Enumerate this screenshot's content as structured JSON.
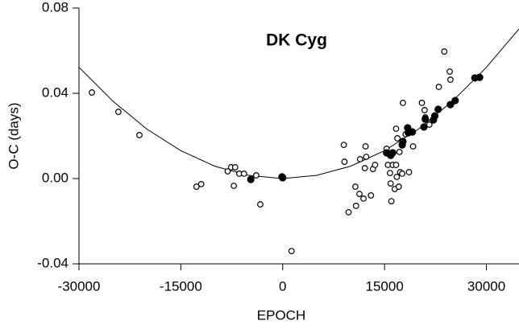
{
  "chart_data": {
    "type": "scatter",
    "title": "DK Cyg",
    "x_label": "EPOCH",
    "y_label": "O-C (days)",
    "xlim": [
      -30000,
      34800
    ],
    "ylim": [
      -0.04,
      0.08
    ],
    "xticks": [
      -30000,
      -15000,
      0,
      15000,
      30000
    ],
    "yticks": [
      -0.04,
      {
        "value": 0,
        "label": "0.00"
      },
      0.04,
      0.08
    ],
    "series": [
      {
        "kind": "line",
        "color": "#000000",
        "x": [
          -30000,
          -25000,
          -20000,
          -15000,
          -10000,
          -5000,
          0,
          5000,
          10000,
          15000,
          20000,
          25000,
          30000,
          34800
        ],
        "values": [
          0.0522,
          0.0363,
          0.0232,
          0.0131,
          0.0058,
          0.0015,
          0,
          0.0015,
          0.0058,
          0.0131,
          0.0232,
          0.0363,
          0.0522,
          0.0702
        ]
      },
      {
        "kind": "open",
        "color": "#000000",
        "x": [
          -28100,
          -24200,
          -21100,
          -12700,
          -12000,
          -8100,
          -7600,
          -7000,
          -7200,
          -6400,
          -5700,
          -3900,
          -3300,
          1300,
          9000,
          9100,
          9700,
          10700,
          10800,
          11300,
          11400,
          11900,
          12100,
          12200,
          12300,
          13000,
          13300,
          13600,
          15300,
          15500,
          15800,
          15900,
          16000,
          16200,
          16500,
          16700,
          16700,
          16800,
          16900,
          17100,
          17200,
          17300,
          17600,
          17700,
          18100,
          18600,
          19200,
          20500,
          20900,
          21000,
          21600,
          23000,
          23800,
          24600,
          24700
        ],
        "values": [
          0.0404,
          0.0313,
          0.0204,
          -0.0038,
          -0.0026,
          0.0034,
          0.0053,
          0.0053,
          -0.0034,
          0.0023,
          0.0023,
          0.0015,
          -0.0121,
          -0.034,
          0.0158,
          0.0079,
          -0.0158,
          -0.0038,
          -0.0128,
          -0.0072,
          0.0091,
          -0.0094,
          0.0049,
          0.0151,
          0.0102,
          -0.0079,
          0.0045,
          0.0064,
          0.014,
          0.0064,
          0.0026,
          -0.0023,
          -0.0106,
          0.0064,
          -0.0049,
          0.0234,
          0.0064,
          0.0008,
          0.0189,
          -0.0038,
          0.0125,
          0.003,
          0.0023,
          0.0355,
          0.0208,
          0.003,
          0.0151,
          0.0355,
          0.0321,
          0.0287,
          0.0253,
          0.043,
          0.0596,
          0.0502,
          0.0464
        ]
      },
      {
        "kind": "filled",
        "color": "#000000",
        "x": [
          -4700,
          0,
          -100,
          15300,
          15900,
          16200,
          17600,
          17700,
          18400,
          18500,
          19100,
          20800,
          21000,
          22200,
          22400,
          22900,
          24700,
          25400,
          28300,
          29000
        ],
        "values": [
          -0.0004,
          0.0004,
          0.0008,
          0.0121,
          0.0109,
          0.0121,
          0.0158,
          0.0174,
          0.0238,
          0.0215,
          0.0219,
          0.0242,
          0.0279,
          0.0275,
          0.0294,
          0.0325,
          0.0347,
          0.0366,
          0.0472,
          0.0475
        ]
      }
    ]
  }
}
